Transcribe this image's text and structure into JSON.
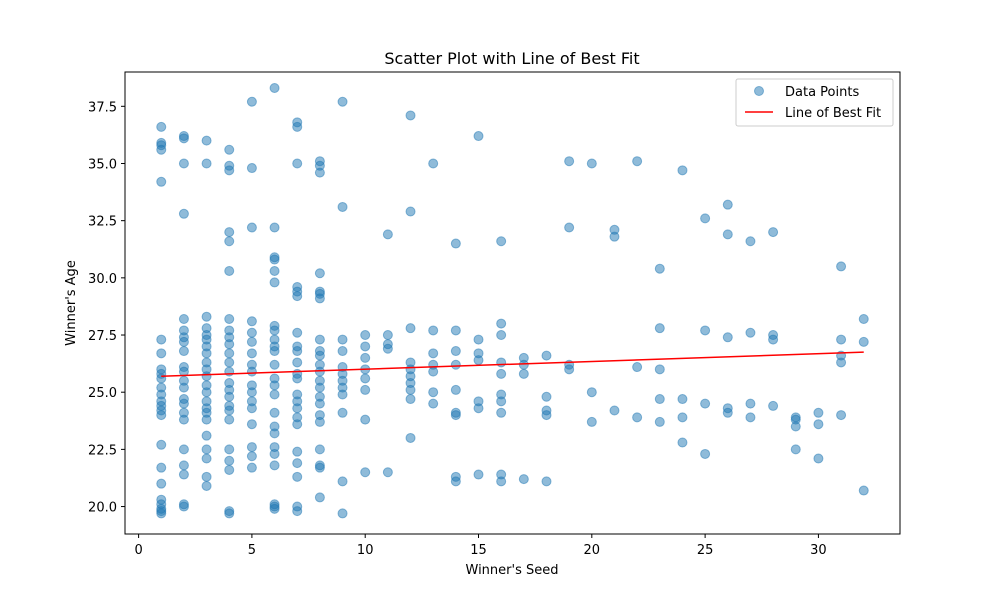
{
  "chart_data": {
    "type": "scatter",
    "title": "Scatter Plot with Line of Best Fit",
    "xlabel": "Winner's Seed",
    "ylabel": "Winner's Age",
    "xlim": [
      -0.6,
      33.6
    ],
    "ylim": [
      18.8,
      39.0
    ],
    "xticks": [
      0,
      5,
      10,
      15,
      20,
      25,
      30
    ],
    "yticks": [
      20.0,
      22.5,
      25.0,
      27.5,
      30.0,
      32.5,
      35.0,
      37.5
    ],
    "ytick_labels": [
      "20.0",
      "22.5",
      "25.0",
      "27.5",
      "30.0",
      "32.5",
      "35.0",
      "37.5"
    ],
    "grid": false,
    "legend_position": "top-right",
    "colors": {
      "points": "#1f77b4",
      "fit_line": "#ff0000"
    },
    "series": [
      {
        "name": "Data Points",
        "kind": "scatter",
        "points": [
          [
            1,
            36.6
          ],
          [
            1,
            35.9
          ],
          [
            1,
            35.8
          ],
          [
            1,
            35.6
          ],
          [
            1,
            34.2
          ],
          [
            1,
            27.3
          ],
          [
            1,
            26.7
          ],
          [
            1,
            26.0
          ],
          [
            1,
            25.8
          ],
          [
            1,
            25.6
          ],
          [
            1,
            25.2
          ],
          [
            1,
            24.9
          ],
          [
            1,
            24.6
          ],
          [
            1,
            24.4
          ],
          [
            1,
            24.2
          ],
          [
            1,
            24.0
          ],
          [
            1,
            22.7
          ],
          [
            1,
            21.7
          ],
          [
            1,
            21.0
          ],
          [
            1,
            20.3
          ],
          [
            1,
            20.1
          ],
          [
            1,
            19.9
          ],
          [
            1,
            19.8
          ],
          [
            1,
            19.7
          ],
          [
            2,
            36.2
          ],
          [
            2,
            36.1
          ],
          [
            2,
            35.0
          ],
          [
            2,
            32.8
          ],
          [
            2,
            28.2
          ],
          [
            2,
            27.7
          ],
          [
            2,
            27.4
          ],
          [
            2,
            27.2
          ],
          [
            2,
            26.8
          ],
          [
            2,
            26.1
          ],
          [
            2,
            25.9
          ],
          [
            2,
            25.5
          ],
          [
            2,
            25.2
          ],
          [
            2,
            24.7
          ],
          [
            2,
            24.5
          ],
          [
            2,
            24.1
          ],
          [
            2,
            23.8
          ],
          [
            2,
            22.5
          ],
          [
            2,
            21.8
          ],
          [
            2,
            21.4
          ],
          [
            2,
            20.1
          ],
          [
            2,
            20.0
          ],
          [
            3,
            36.0
          ],
          [
            3,
            35.0
          ],
          [
            3,
            28.3
          ],
          [
            3,
            27.8
          ],
          [
            3,
            27.5
          ],
          [
            3,
            27.3
          ],
          [
            3,
            27.0
          ],
          [
            3,
            26.7
          ],
          [
            3,
            26.3
          ],
          [
            3,
            26.0
          ],
          [
            3,
            25.7
          ],
          [
            3,
            25.3
          ],
          [
            3,
            25.0
          ],
          [
            3,
            24.6
          ],
          [
            3,
            24.3
          ],
          [
            3,
            24.1
          ],
          [
            3,
            23.8
          ],
          [
            3,
            23.1
          ],
          [
            3,
            22.5
          ],
          [
            3,
            22.1
          ],
          [
            3,
            21.3
          ],
          [
            3,
            20.9
          ],
          [
            4,
            35.6
          ],
          [
            4,
            34.9
          ],
          [
            4,
            34.7
          ],
          [
            4,
            32.0
          ],
          [
            4,
            31.6
          ],
          [
            4,
            30.3
          ],
          [
            4,
            28.2
          ],
          [
            4,
            27.7
          ],
          [
            4,
            27.4
          ],
          [
            4,
            27.1
          ],
          [
            4,
            26.7
          ],
          [
            4,
            26.3
          ],
          [
            4,
            25.9
          ],
          [
            4,
            25.4
          ],
          [
            4,
            25.1
          ],
          [
            4,
            24.8
          ],
          [
            4,
            24.4
          ],
          [
            4,
            24.2
          ],
          [
            4,
            23.8
          ],
          [
            4,
            22.5
          ],
          [
            4,
            22.0
          ],
          [
            4,
            21.6
          ],
          [
            4,
            19.8
          ],
          [
            4,
            19.7
          ],
          [
            5,
            37.7
          ],
          [
            5,
            34.8
          ],
          [
            5,
            32.2
          ],
          [
            5,
            28.1
          ],
          [
            5,
            27.6
          ],
          [
            5,
            27.2
          ],
          [
            5,
            26.7
          ],
          [
            5,
            26.2
          ],
          [
            5,
            25.9
          ],
          [
            5,
            25.3
          ],
          [
            5,
            25.0
          ],
          [
            5,
            24.6
          ],
          [
            5,
            24.3
          ],
          [
            5,
            23.6
          ],
          [
            5,
            22.6
          ],
          [
            5,
            22.2
          ],
          [
            5,
            21.7
          ],
          [
            6,
            38.3
          ],
          [
            6,
            32.2
          ],
          [
            6,
            30.9
          ],
          [
            6,
            30.8
          ],
          [
            6,
            30.3
          ],
          [
            6,
            29.8
          ],
          [
            6,
            27.9
          ],
          [
            6,
            27.7
          ],
          [
            6,
            27.3
          ],
          [
            6,
            27.0
          ],
          [
            6,
            26.8
          ],
          [
            6,
            26.2
          ],
          [
            6,
            25.6
          ],
          [
            6,
            25.3
          ],
          [
            6,
            24.9
          ],
          [
            6,
            24.1
          ],
          [
            6,
            23.5
          ],
          [
            6,
            23.2
          ],
          [
            6,
            22.6
          ],
          [
            6,
            22.3
          ],
          [
            6,
            21.8
          ],
          [
            6,
            20.1
          ],
          [
            6,
            20.0
          ],
          [
            6,
            19.9
          ],
          [
            7,
            36.8
          ],
          [
            7,
            36.6
          ],
          [
            7,
            35.0
          ],
          [
            7,
            29.6
          ],
          [
            7,
            29.4
          ],
          [
            7,
            29.2
          ],
          [
            7,
            27.6
          ],
          [
            7,
            27.0
          ],
          [
            7,
            26.8
          ],
          [
            7,
            26.3
          ],
          [
            7,
            25.8
          ],
          [
            7,
            25.6
          ],
          [
            7,
            24.9
          ],
          [
            7,
            24.6
          ],
          [
            7,
            24.3
          ],
          [
            7,
            23.9
          ],
          [
            7,
            23.6
          ],
          [
            7,
            22.4
          ],
          [
            7,
            21.9
          ],
          [
            7,
            21.3
          ],
          [
            7,
            20.0
          ],
          [
            7,
            19.8
          ],
          [
            8,
            35.1
          ],
          [
            8,
            34.9
          ],
          [
            8,
            34.6
          ],
          [
            8,
            30.2
          ],
          [
            8,
            29.4
          ],
          [
            8,
            29.3
          ],
          [
            8,
            29.1
          ],
          [
            8,
            27.3
          ],
          [
            8,
            26.8
          ],
          [
            8,
            26.6
          ],
          [
            8,
            26.2
          ],
          [
            8,
            25.9
          ],
          [
            8,
            25.5
          ],
          [
            8,
            25.2
          ],
          [
            8,
            24.8
          ],
          [
            8,
            24.5
          ],
          [
            8,
            24.0
          ],
          [
            8,
            23.7
          ],
          [
            8,
            22.5
          ],
          [
            8,
            21.8
          ],
          [
            8,
            21.7
          ],
          [
            8,
            20.4
          ],
          [
            9,
            37.7
          ],
          [
            9,
            33.1
          ],
          [
            9,
            27.3
          ],
          [
            9,
            26.8
          ],
          [
            9,
            26.1
          ],
          [
            9,
            25.8
          ],
          [
            9,
            25.5
          ],
          [
            9,
            25.2
          ],
          [
            9,
            24.9
          ],
          [
            9,
            24.1
          ],
          [
            9,
            21.1
          ],
          [
            9,
            19.7
          ],
          [
            10,
            27.5
          ],
          [
            10,
            27.0
          ],
          [
            10,
            26.5
          ],
          [
            10,
            26.0
          ],
          [
            10,
            25.6
          ],
          [
            10,
            25.1
          ],
          [
            10,
            23.8
          ],
          [
            10,
            21.5
          ],
          [
            11,
            31.9
          ],
          [
            11,
            27.5
          ],
          [
            11,
            27.1
          ],
          [
            11,
            26.9
          ],
          [
            11,
            21.5
          ],
          [
            12,
            37.1
          ],
          [
            12,
            32.9
          ],
          [
            12,
            27.8
          ],
          [
            12,
            26.3
          ],
          [
            12,
            26.0
          ],
          [
            12,
            25.7
          ],
          [
            12,
            25.4
          ],
          [
            12,
            25.1
          ],
          [
            12,
            24.7
          ],
          [
            12,
            23.0
          ],
          [
            13,
            35.0
          ],
          [
            13,
            27.7
          ],
          [
            13,
            26.7
          ],
          [
            13,
            26.2
          ],
          [
            13,
            25.9
          ],
          [
            13,
            25.0
          ],
          [
            13,
            24.5
          ],
          [
            14,
            31.5
          ],
          [
            14,
            27.7
          ],
          [
            14,
            26.8
          ],
          [
            14,
            26.2
          ],
          [
            14,
            25.1
          ],
          [
            14,
            24.1
          ],
          [
            14,
            24.0
          ],
          [
            14,
            21.3
          ],
          [
            14,
            21.1
          ],
          [
            15,
            36.2
          ],
          [
            15,
            27.3
          ],
          [
            15,
            26.7
          ],
          [
            15,
            26.4
          ],
          [
            15,
            24.6
          ],
          [
            15,
            24.3
          ],
          [
            15,
            21.4
          ],
          [
            16,
            31.6
          ],
          [
            16,
            28.0
          ],
          [
            16,
            27.5
          ],
          [
            16,
            26.3
          ],
          [
            16,
            25.8
          ],
          [
            16,
            24.9
          ],
          [
            16,
            24.6
          ],
          [
            16,
            24.1
          ],
          [
            16,
            21.4
          ],
          [
            16,
            21.1
          ],
          [
            17,
            26.5
          ],
          [
            17,
            26.2
          ],
          [
            17,
            25.8
          ],
          [
            17,
            21.2
          ],
          [
            18,
            26.6
          ],
          [
            18,
            24.8
          ],
          [
            18,
            24.2
          ],
          [
            18,
            24.0
          ],
          [
            18,
            21.1
          ],
          [
            19,
            35.1
          ],
          [
            19,
            32.2
          ],
          [
            19,
            26.2
          ],
          [
            19,
            26.0
          ],
          [
            20,
            35.0
          ],
          [
            20,
            25.0
          ],
          [
            20,
            23.7
          ],
          [
            21,
            32.1
          ],
          [
            21,
            31.8
          ],
          [
            21,
            24.2
          ],
          [
            22,
            35.1
          ],
          [
            22,
            26.1
          ],
          [
            22,
            23.9
          ],
          [
            23,
            30.4
          ],
          [
            23,
            27.8
          ],
          [
            23,
            26.0
          ],
          [
            23,
            24.7
          ],
          [
            23,
            23.7
          ],
          [
            24,
            34.7
          ],
          [
            24,
            24.7
          ],
          [
            24,
            23.9
          ],
          [
            24,
            22.8
          ],
          [
            25,
            32.6
          ],
          [
            25,
            27.7
          ],
          [
            25,
            24.5
          ],
          [
            25,
            22.3
          ],
          [
            26,
            33.2
          ],
          [
            26,
            31.9
          ],
          [
            26,
            27.4
          ],
          [
            26,
            24.3
          ],
          [
            26,
            24.1
          ],
          [
            27,
            31.6
          ],
          [
            27,
            27.6
          ],
          [
            27,
            24.5
          ],
          [
            27,
            23.9
          ],
          [
            28,
            32.0
          ],
          [
            28,
            27.5
          ],
          [
            28,
            27.3
          ],
          [
            28,
            24.4
          ],
          [
            29,
            23.9
          ],
          [
            29,
            23.8
          ],
          [
            29,
            23.5
          ],
          [
            29,
            22.5
          ],
          [
            30,
            24.1
          ],
          [
            30,
            23.6
          ],
          [
            30,
            22.1
          ],
          [
            31,
            30.5
          ],
          [
            31,
            27.3
          ],
          [
            31,
            26.6
          ],
          [
            31,
            26.3
          ],
          [
            31,
            24.0
          ],
          [
            32,
            28.2
          ],
          [
            32,
            27.2
          ],
          [
            32,
            20.7
          ]
        ]
      },
      {
        "name": "Line of Best Fit",
        "kind": "line",
        "points": [
          [
            1,
            25.7
          ],
          [
            32,
            26.75
          ]
        ]
      }
    ]
  }
}
